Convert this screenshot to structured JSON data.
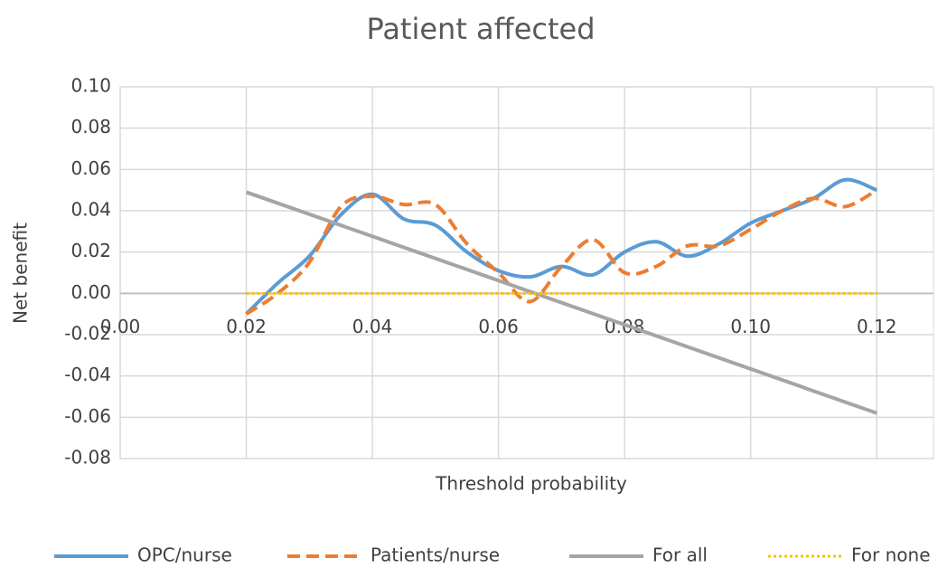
{
  "chart_data": {
    "type": "line",
    "title": "Patient affected",
    "x_label": "Threshold probability",
    "y_label": "Net benefit",
    "xlim": [
      0,
      0.129
    ],
    "ylim": [
      -0.08,
      0.1
    ],
    "xticks": [
      {
        "value": 0,
        "label": "0.00"
      },
      0.02,
      0.04,
      0.06,
      0.08,
      {
        "value": 0.1,
        "label": "0.10"
      },
      0.12
    ],
    "yticks": [
      {
        "value": -0.08,
        "label": "-0.08"
      },
      -0.06,
      -0.04,
      -0.02,
      {
        "value": 0,
        "label": "0.00"
      },
      0.02,
      0.04,
      0.06,
      0.08,
      {
        "value": 0.1,
        "label": "0.10"
      }
    ],
    "grid": true,
    "legend": "bottom",
    "series": [
      {
        "name": "OPC/nurse",
        "color": "#5b9bd5",
        "style": "solid",
        "x": [
          0.02,
          0.025,
          0.03,
          0.035,
          0.04,
          0.045,
          0.05,
          0.055,
          0.06,
          0.065,
          0.07,
          0.075,
          0.08,
          0.085,
          0.09,
          0.095,
          0.1,
          0.105,
          0.11,
          0.115,
          0.12
        ],
        "values": [
          -0.01,
          0.005,
          0.018,
          0.038,
          0.048,
          0.036,
          0.033,
          0.02,
          0.011,
          0.008,
          0.013,
          0.009,
          0.02,
          0.025,
          0.018,
          0.024,
          0.034,
          0.04,
          0.046,
          0.055,
          0.05
        ]
      },
      {
        "name": "Patients/nurse",
        "color": "#ed7d31",
        "style": "dashed",
        "x": [
          0.02,
          0.025,
          0.03,
          0.035,
          0.04,
          0.045,
          0.05,
          0.055,
          0.06,
          0.065,
          0.07,
          0.075,
          0.08,
          0.085,
          0.09,
          0.095,
          0.1,
          0.105,
          0.11,
          0.115,
          0.12
        ],
        "values": [
          -0.01,
          0,
          0.015,
          0.042,
          0.047,
          0.043,
          0.043,
          0.024,
          0.01,
          -0.004,
          0.013,
          0.026,
          0.01,
          0.013,
          0.023,
          0.023,
          0.031,
          0.04,
          0.046,
          0.042,
          0.05
        ]
      },
      {
        "name": "For all",
        "color": "#a5a5a5",
        "style": "solid",
        "x": [
          0.02,
          0.12
        ],
        "values": [
          0.049,
          -0.058
        ]
      },
      {
        "name": "For none",
        "color": "#ffc000",
        "style": "dotted",
        "x": [
          0.02,
          0.12
        ],
        "values": [
          0,
          0
        ]
      }
    ]
  }
}
